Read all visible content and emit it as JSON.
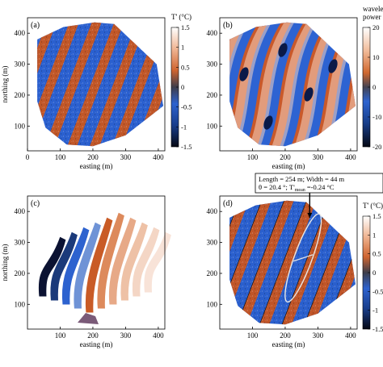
{
  "panels": {
    "a": {
      "label": "(a)",
      "xlabel": "easting (m)",
      "ylabel": "northing (m)",
      "xticks": [
        "0",
        "100",
        "200",
        "300",
        "400"
      ],
      "yticks": [
        "100",
        "200",
        "300",
        "400"
      ],
      "xlim": [
        0,
        420
      ],
      "ylim": [
        20,
        450
      ]
    },
    "b": {
      "label": "(b)",
      "xlabel": "easting (m)",
      "xticks": [
        "100",
        "200",
        "300",
        "400"
      ],
      "yticks": [
        "100",
        "200",
        "300",
        "400"
      ],
      "xlim": [
        0,
        420
      ],
      "ylim": [
        20,
        450
      ]
    },
    "c": {
      "label": "(c)",
      "xlabel": "easting (m)",
      "ylabel": "northing (m)",
      "xticks": [
        "100",
        "200",
        "300",
        "400"
      ],
      "yticks": [
        "100",
        "200",
        "300",
        "400"
      ],
      "xlim": [
        0,
        420
      ],
      "ylim": [
        20,
        450
      ]
    },
    "d": {
      "label": "(d)",
      "xlabel": "easting (m)",
      "xticks": [
        "100",
        "200",
        "300",
        "400"
      ],
      "yticks": [
        "100",
        "200",
        "300",
        "400"
      ],
      "xlim": [
        0,
        420
      ],
      "ylim": [
        20,
        450
      ],
      "annotation_line1": "Length = 254 m; Width = 44 m",
      "annotation_line2_prefix": "θ = 20.4 °; T'",
      "annotation_line2_sub": "mean",
      "annotation_line2_suffix": " =-0.24 °C"
    }
  },
  "colorbars": {
    "top_temperature": {
      "title": "T' (°C)",
      "ticks": [
        "1.5",
        "1",
        "0.5",
        "0",
        "-0.5",
        "-1",
        "-1.5"
      ]
    },
    "wavelet": {
      "title_line1": "wavelet",
      "title_line2": "power",
      "ticks": [
        "20",
        "10",
        "0",
        "-10",
        "-20"
      ]
    },
    "bottom_temperature": {
      "title": "T' (°C)",
      "ticks": [
        "1.5",
        "1",
        "0.5",
        "0",
        "-0.5",
        "-1",
        "-1.5"
      ]
    }
  },
  "colors": {
    "warm": "#c8521f",
    "cool": "#2a62d4",
    "background": "#ffffff"
  }
}
